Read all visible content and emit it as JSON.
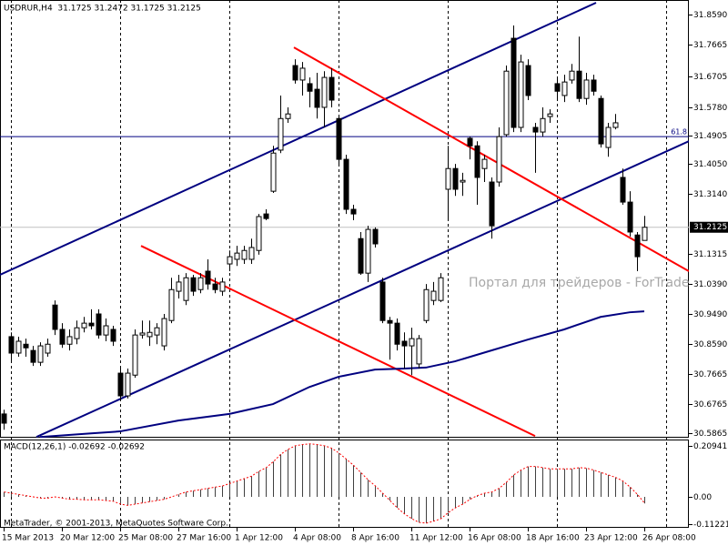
{
  "chart_data": [
    {
      "type": "candlestick",
      "title": "USDRUR,H4  31.1725 31.2472 31.1725 31.2125",
      "categories": [
        "15 Mar 2013",
        null,
        null,
        null,
        null,
        null,
        null,
        null,
        "20 Mar 12:00",
        null,
        null,
        null,
        null,
        null,
        null,
        null,
        "25 Mar 08:00",
        null,
        null,
        null,
        null,
        null,
        null,
        null,
        "27 Mar 16:00",
        null,
        null,
        null,
        null,
        null,
        null,
        null,
        "1 Apr 12:00",
        null,
        null,
        null,
        null,
        null,
        null,
        null,
        "4 Apr 08:00",
        null,
        null,
        null,
        null,
        null,
        null,
        null,
        "8 Apr 16:00",
        null,
        null,
        null,
        null,
        null,
        null,
        null,
        "11 Apr 12:00",
        null,
        null,
        null,
        null,
        null,
        null,
        null,
        "16 Apr 08:00",
        null,
        null,
        null,
        null,
        null,
        null,
        null,
        "18 Apr 16:00",
        null,
        null,
        null,
        null,
        null,
        null,
        null,
        "23 Apr 12:00",
        null,
        null,
        null,
        null,
        null,
        null,
        null,
        "26 Apr 08:00"
      ],
      "open": [
        30.645,
        30.88,
        30.83,
        30.857,
        30.838,
        30.802,
        30.83,
        30.976,
        30.902,
        30.857,
        30.874,
        30.907,
        30.921,
        30.949,
        30.885,
        30.902,
        30.769,
        30.7,
        30.763,
        30.885,
        30.88,
        30.885,
        30.852,
        30.929,
        31.018,
        30.99,
        31.059,
        31.023,
        31.079,
        31.04,
        31.018,
        31.101,
        31.115,
        31.115,
        31.115,
        31.142,
        31.253,
        31.322,
        31.447,
        31.543,
        31.704,
        31.66,
        31.649,
        31.632,
        31.577,
        31.668,
        31.543,
        31.419,
        31.267,
        31.178,
        31.073,
        31.206,
        31.046,
        30.929,
        30.921,
        30.866,
        30.852,
        30.797,
        30.929,
        30.99,
        30.99,
        31.328,
        31.391,
        31.35,
        31.483,
        31.46,
        31.391,
        31.35,
        31.35,
        31.494,
        31.787,
        31.516,
        31.704,
        31.516,
        31.502,
        31.549,
        31.649,
        31.613,
        31.66,
        31.687,
        31.604,
        31.66,
        31.604,
        31.455,
        31.516,
        31.364,
        31.289,
        31.189,
        31.1725
      ],
      "high": [
        30.658,
        30.893,
        30.88,
        30.874,
        30.852,
        30.863,
        30.874,
        30.99,
        30.921,
        30.902,
        30.929,
        30.94,
        30.963,
        30.963,
        30.935,
        30.913,
        30.783,
        30.783,
        30.902,
        30.929,
        30.929,
        30.921,
        30.949,
        31.059,
        31.068,
        31.073,
        31.068,
        31.073,
        31.115,
        31.059,
        31.059,
        31.142,
        31.156,
        31.156,
        31.178,
        31.253,
        31.267,
        31.46,
        31.613,
        31.577,
        31.723,
        31.715,
        31.668,
        31.682,
        31.687,
        31.696,
        31.549,
        31.433,
        31.281,
        31.198,
        31.217,
        31.212,
        31.059,
        30.94,
        30.935,
        30.893,
        30.907,
        30.885,
        31.04,
        31.046,
        31.073,
        31.46,
        31.405,
        31.378,
        31.488,
        31.474,
        31.433,
        31.364,
        31.516,
        31.704,
        31.826,
        31.737,
        31.723,
        31.53,
        31.577,
        31.571,
        31.668,
        31.676,
        31.709,
        31.792,
        31.682,
        31.676,
        31.613,
        31.53,
        31.557,
        31.391,
        31.322,
        31.198,
        31.2472
      ],
      "low": [
        30.597,
        30.802,
        30.819,
        30.819,
        30.791,
        30.791,
        30.819,
        30.885,
        30.846,
        30.838,
        30.857,
        30.893,
        30.902,
        30.874,
        30.866,
        30.852,
        30.686,
        30.692,
        30.755,
        30.874,
        30.852,
        30.857,
        30.838,
        30.921,
        30.996,
        30.976,
        31.004,
        31.012,
        31.023,
        31.012,
        31.004,
        31.079,
        31.095,
        31.101,
        31.101,
        31.129,
        31.234,
        31.317,
        31.438,
        31.53,
        31.649,
        31.613,
        31.577,
        31.543,
        31.516,
        31.577,
        31.405,
        31.253,
        31.234,
        31.068,
        31.046,
        31.151,
        30.921,
        30.81,
        30.838,
        30.783,
        30.763,
        30.783,
        30.921,
        30.976,
        30.985,
        31.239,
        31.308,
        31.308,
        31.419,
        31.281,
        31.35,
        31.178,
        31.336,
        31.488,
        31.502,
        31.502,
        31.599,
        31.378,
        31.488,
        31.53,
        31.599,
        31.593,
        31.649,
        31.593,
        31.585,
        31.613,
        31.455,
        31.427,
        31.51,
        31.281,
        31.184,
        31.079,
        31.1725
      ],
      "close": [
        30.617,
        30.83,
        30.866,
        30.846,
        30.802,
        30.852,
        30.857,
        30.902,
        30.857,
        30.88,
        30.907,
        30.921,
        30.913,
        30.885,
        30.913,
        30.866,
        30.7,
        30.769,
        30.885,
        30.891,
        30.893,
        30.907,
        30.935,
        31.023,
        31.046,
        31.059,
        31.018,
        31.059,
        31.04,
        31.023,
        31.046,
        31.123,
        31.134,
        31.142,
        31.151,
        31.245,
        31.239,
        31.438,
        31.543,
        31.557,
        31.66,
        31.696,
        31.626,
        31.577,
        31.668,
        31.599,
        31.419,
        31.267,
        31.253,
        31.073,
        31.206,
        31.162,
        30.929,
        30.921,
        30.857,
        30.852,
        30.874,
        30.874,
        31.023,
        31.018,
        31.059,
        31.391,
        31.328,
        31.355,
        31.46,
        31.364,
        31.419,
        31.217,
        31.488,
        31.687,
        31.516,
        31.715,
        31.613,
        31.502,
        31.543,
        31.557,
        31.626,
        31.654,
        31.687,
        31.604,
        31.66,
        31.626,
        31.466,
        31.516,
        31.53,
        31.289,
        31.198,
        31.123,
        31.2125
      ],
      "up_color": "#ffffff",
      "down_color": "#000000",
      "outline_color": "#000000",
      "ylim": [
        30.5728,
        31.9033
      ],
      "yticks": [
        {
          "value": 31.859,
          "label": "31.8590"
        },
        31.7665,
        31.6705,
        {
          "value": 31.578,
          "label": "31.5780"
        },
        31.4905,
        {
          "value": 31.405,
          "label": "31.4050"
        },
        {
          "value": 31.314,
          "label": "31.3140"
        },
        31.1315,
        {
          "value": 31.039,
          "label": "31.0390"
        },
        {
          "value": 30.949,
          "label": "30.9490"
        },
        {
          "value": 30.859,
          "label": "30.8590"
        },
        30.7665,
        30.6765,
        30.5865
      ],
      "current_price": 31.2125,
      "level": {
        "label": "61.8",
        "value": 31.488,
        "color": "#000080"
      },
      "trendlines": [
        {
          "color": "#000080",
          "x": [
            -0.5,
            81.375
          ],
          "values": [
            31.068,
            31.895
          ]
        },
        {
          "color": "#000080",
          "x": [
            4.5,
            94.125
          ],
          "values": [
            30.575,
            31.474
          ]
        },
        {
          "color": "#ff0000",
          "x": [
            39.875,
            94.125
          ],
          "values": [
            31.759,
            31.079
          ]
        },
        {
          "color": "#ff0000",
          "x": [
            18.875,
            73
          ],
          "values": [
            31.156,
            30.578
          ]
        }
      ],
      "moving_average": {
        "color": "#000080",
        "x": [
          5,
          12,
          16,
          24,
          31,
          37,
          42,
          46,
          51,
          55,
          58,
          62,
          67,
          72,
          77,
          82,
          86,
          88
        ],
        "values": [
          30.575,
          30.586,
          30.592,
          30.625,
          30.645,
          30.675,
          30.727,
          30.758,
          30.78,
          30.783,
          30.786,
          30.805,
          30.838,
          30.871,
          30.902,
          30.94,
          30.954,
          30.957
        ]
      },
      "watermark": "Портал для трейдеров - ForTrade"
    },
    {
      "type": "bar",
      "title": "MACD(12,26,1) -0.02692 -0.02692",
      "note": "MetaTrader, © 2001-2013, MetaQuotes Software Corp.",
      "values": [
        0.02,
        0.015,
        0.01,
        0.005,
        0.0,
        -0.005,
        -0.005,
        0.0,
        -0.005,
        -0.01,
        -0.01,
        -0.012,
        -0.012,
        -0.012,
        -0.015,
        -0.018,
        -0.03,
        -0.035,
        -0.03,
        -0.025,
        -0.02,
        -0.015,
        -0.01,
        0.0,
        0.01,
        0.02,
        0.025,
        0.03,
        0.035,
        0.04,
        0.045,
        0.055,
        0.065,
        0.075,
        0.085,
        0.105,
        0.12,
        0.145,
        0.175,
        0.195,
        0.21,
        0.215,
        0.218,
        0.215,
        0.21,
        0.2,
        0.18,
        0.155,
        0.13,
        0.1,
        0.07,
        0.045,
        0.015,
        -0.015,
        -0.045,
        -0.07,
        -0.09,
        -0.105,
        -0.108,
        -0.1,
        -0.09,
        -0.065,
        -0.045,
        -0.03,
        -0.01,
        0.005,
        0.015,
        0.02,
        0.035,
        0.06,
        0.09,
        0.11,
        0.125,
        0.125,
        0.12,
        0.115,
        0.115,
        0.115,
        0.115,
        0.12,
        0.118,
        0.11,
        0.1,
        0.09,
        0.08,
        0.065,
        0.04,
        0.01,
        -0.02692
      ],
      "color": "#404040",
      "signal_color": "#ff0000",
      "ylim": [
        -0.1272,
        0.2356
      ],
      "yticks": [
        0.20941,
        {
          "value": 0,
          "label": "0.00"
        },
        -0.11221
      ]
    }
  ]
}
